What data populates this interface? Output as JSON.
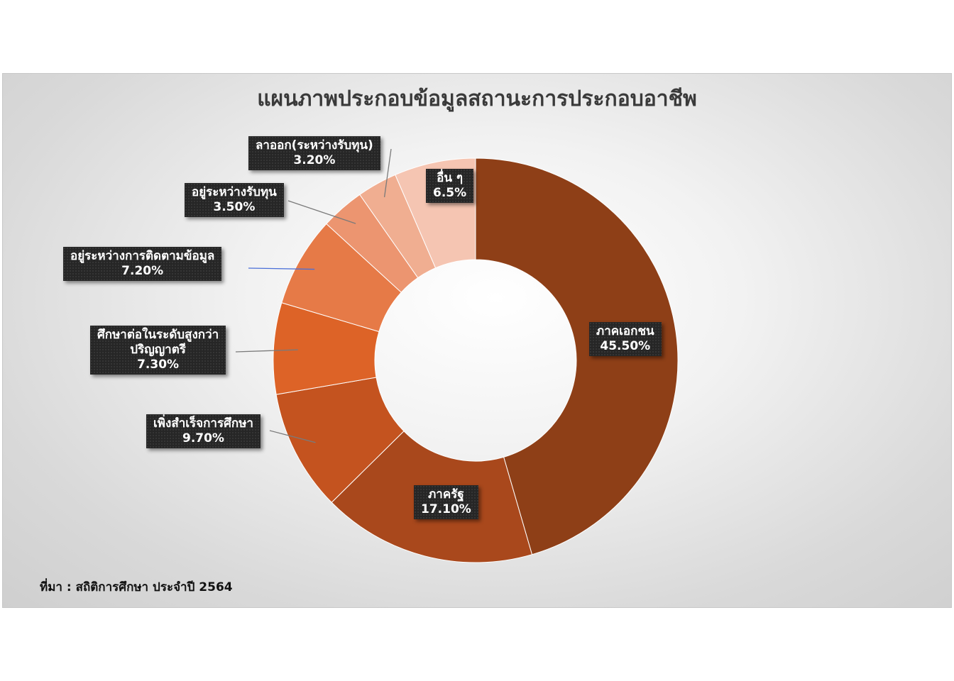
{
  "title": "แผนภาพประกอบข้อมูลสถานะการประกอบอาชีพ",
  "source": "ที่มา : สถิติการศึกษา ประจำปี 2564",
  "chart_data": {
    "type": "pie",
    "variant": "doughnut",
    "legend": "none",
    "slices": [
      {
        "label": "ภาคเอกชน",
        "value": 45.5,
        "value_label": "45.50%",
        "color": "#8E3F17"
      },
      {
        "label": "ภาครัฐ",
        "value": 17.1,
        "value_label": "17.10%",
        "color": "#A9481C"
      },
      {
        "label": "เพิ่งสำเร็จการศึกษา",
        "value": 9.7,
        "value_label": "9.70%",
        "color": "#C4531F"
      },
      {
        "label": "ศึกษาต่อในระดับสูงกว่าปริญญาตรี",
        "label_lines": [
          "ศึกษาต่อในระดับสูงกว่า",
          "ปริญญาตรี"
        ],
        "value": 7.3,
        "value_label": "7.30%",
        "color": "#DD6327"
      },
      {
        "label": "อยู่ระหว่างการติดตามข้อมูล",
        "value": 7.2,
        "value_label": "7.20%",
        "color": "#E67A47"
      },
      {
        "label": "อยู่ระหว่างรับทุน",
        "value": 3.5,
        "value_label": "3.50%",
        "color": "#EC9570"
      },
      {
        "label": "ลาออก(ระหว่างรับทุน)",
        "value": 3.2,
        "value_label": "3.20%",
        "color": "#F0AE91"
      },
      {
        "label": "อื่น ๆ",
        "value": 6.5,
        "value_label": "6.5%",
        "color": "#F5C5B2"
      }
    ]
  }
}
